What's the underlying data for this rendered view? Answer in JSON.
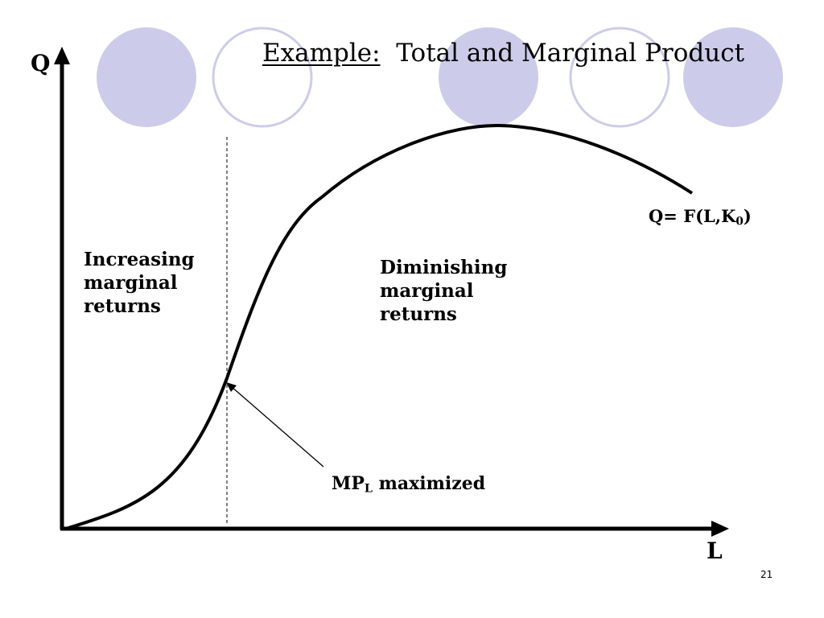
{
  "slide": {
    "title_prefix": "Example:",
    "title_rest": "Total and Marginal Product",
    "page_number": "21"
  },
  "axes": {
    "y_label": "Q",
    "x_label": "L"
  },
  "labels": {
    "increasing": [
      "Increasing",
      "marginal",
      "returns"
    ],
    "diminishing": [
      "Diminishing",
      "marginal",
      "returns"
    ],
    "function_prefix": "Q= F(L,K",
    "function_subscript": "0",
    "function_suffix": ")",
    "mp_prefix": "MP",
    "mp_subscript": "L",
    "mp_suffix": " maximized"
  },
  "colors": {
    "circle_fill": "#ccccea",
    "circle_stroke": "#ccccea",
    "curve": "#000000"
  }
}
